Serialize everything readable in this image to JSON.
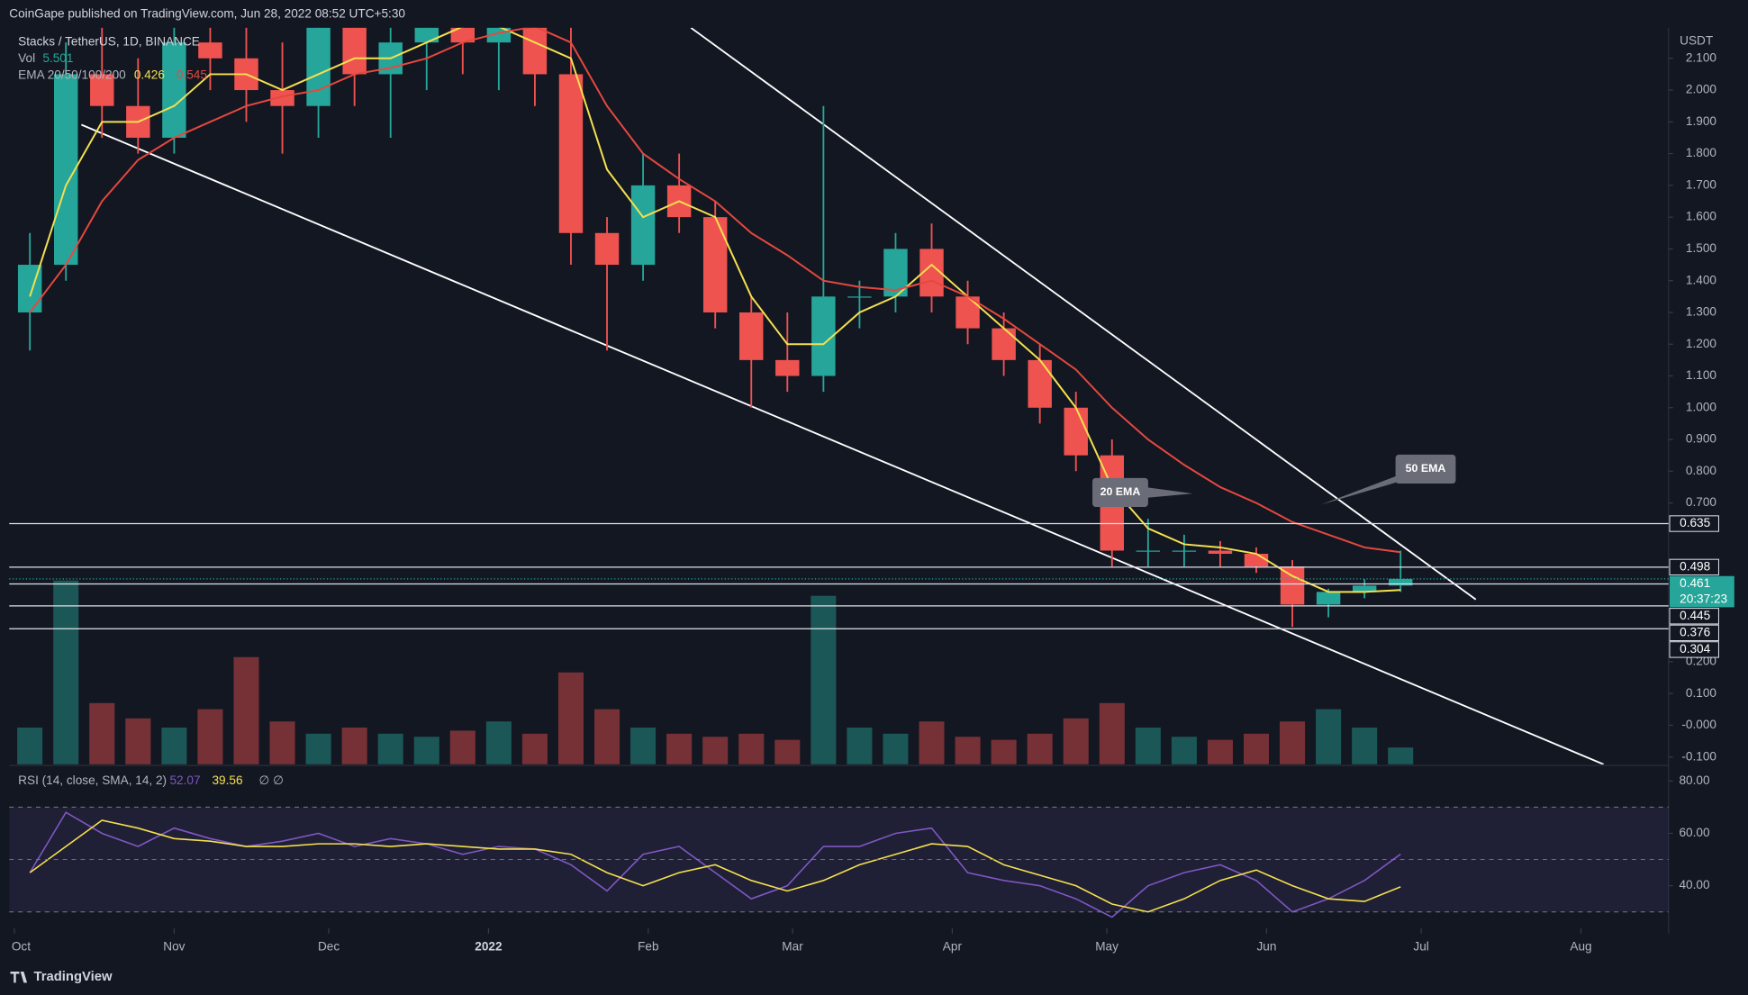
{
  "header": "CoinGape published on TradingView.com, Jun 28, 2022 08:52 UTC+5:30",
  "footer": "TradingView",
  "chart_data": [
    {
      "type": "candlestick",
      "title": "Stacks / TetherUS, 1D, BINANCE",
      "axis_unit": "USDT",
      "x": [
        3,
        10,
        17,
        24,
        31,
        38,
        45,
        52,
        59,
        66,
        73,
        80,
        87,
        94,
        101,
        108,
        115,
        122,
        129,
        136,
        143,
        150,
        157,
        164,
        171,
        178,
        185,
        192,
        199,
        206,
        213,
        220,
        227,
        234,
        241,
        248,
        255,
        262,
        269
      ],
      "open": [
        1.3,
        1.45,
        2.05,
        1.95,
        1.85,
        2.15,
        2.1,
        2.0,
        1.95,
        2.2,
        2.05,
        2.15,
        2.25,
        2.15,
        2.2,
        2.05,
        1.55,
        1.45,
        1.7,
        1.6,
        1.3,
        1.15,
        1.1,
        1.35,
        1.35,
        1.5,
        1.35,
        1.25,
        1.15,
        1.0,
        0.85,
        0.55,
        0.55,
        0.55,
        0.54,
        0.5,
        0.38,
        0.42,
        0.44
      ],
      "high": [
        1.55,
        2.15,
        2.25,
        2.1,
        2.2,
        2.3,
        2.25,
        2.15,
        2.3,
        2.3,
        2.25,
        2.3,
        2.3,
        2.3,
        2.3,
        2.2,
        1.6,
        1.8,
        1.8,
        1.65,
        1.35,
        1.3,
        1.95,
        1.4,
        1.55,
        1.58,
        1.4,
        1.3,
        1.2,
        1.05,
        0.9,
        0.65,
        0.6,
        0.58,
        0.56,
        0.52,
        0.43,
        0.46,
        0.55
      ],
      "low": [
        1.18,
        1.4,
        1.85,
        1.8,
        1.8,
        2.0,
        1.9,
        1.8,
        1.85,
        1.95,
        1.85,
        2.0,
        2.05,
        2.0,
        1.95,
        1.45,
        1.18,
        1.4,
        1.55,
        1.25,
        1.0,
        1.05,
        1.05,
        1.25,
        1.3,
        1.3,
        1.2,
        1.1,
        0.95,
        0.8,
        0.5,
        0.5,
        0.5,
        0.5,
        0.48,
        0.31,
        0.34,
        0.4,
        0.42
      ],
      "close": [
        1.45,
        2.05,
        1.95,
        1.85,
        2.15,
        2.1,
        2.0,
        1.95,
        2.2,
        2.05,
        2.15,
        2.25,
        2.15,
        2.2,
        2.05,
        1.55,
        1.45,
        1.7,
        1.6,
        1.3,
        1.15,
        1.1,
        1.35,
        1.35,
        1.5,
        1.35,
        1.25,
        1.15,
        1.0,
        0.85,
        0.55,
        0.55,
        0.55,
        0.54,
        0.5,
        0.38,
        0.42,
        0.44,
        0.461
      ],
      "up_color": "#26a69a",
      "down_color": "#ef5350",
      "volume": {
        "name": "Vol",
        "values": [
          12,
          60,
          20,
          15,
          12,
          18,
          35,
          14,
          10,
          12,
          10,
          9,
          11,
          14,
          10,
          30,
          18,
          12,
          10,
          9,
          10,
          8,
          55,
          12,
          10,
          14,
          9,
          8,
          10,
          15,
          20,
          12,
          9,
          8,
          10,
          14,
          18,
          12,
          5.501
        ],
        "ylim": [
          0,
          80
        ]
      },
      "ema": {
        "name": "EMA 20/50/100/200",
        "series": [
          {
            "color": "#f5e04f",
            "values": [
              1.35,
              1.7,
              1.9,
              1.9,
              1.95,
              2.05,
              2.05,
              2.0,
              2.05,
              2.1,
              2.1,
              2.15,
              2.2,
              2.2,
              2.15,
              2.1,
              1.75,
              1.6,
              1.65,
              1.6,
              1.35,
              1.2,
              1.2,
              1.3,
              1.35,
              1.45,
              1.35,
              1.25,
              1.15,
              1.0,
              0.75,
              0.62,
              0.57,
              0.56,
              0.54,
              0.47,
              0.42,
              0.42,
              0.426
            ]
          },
          {
            "color": "#e5483f",
            "values": [
              1.3,
              1.45,
              1.65,
              1.78,
              1.85,
              1.9,
              1.95,
              1.98,
              2.0,
              2.05,
              2.07,
              2.1,
              2.15,
              2.18,
              2.2,
              2.15,
              1.95,
              1.8,
              1.72,
              1.65,
              1.55,
              1.48,
              1.4,
              1.38,
              1.37,
              1.4,
              1.35,
              1.28,
              1.2,
              1.12,
              1.0,
              0.9,
              0.82,
              0.75,
              0.7,
              0.64,
              0.6,
              0.56,
              0.545
            ]
          }
        ]
      },
      "trendlines": [
        {
          "x": [
            131.3,
            283.6
          ],
          "y": [
            2.196,
            0.396
          ]
        },
        {
          "x": [
            13,
            308.4
          ],
          "y": [
            1.891,
            -0.123
          ]
        }
      ],
      "levels": [
        0.635,
        0.498,
        0.445,
        0.376,
        0.304
      ],
      "countdown": "20:37:23",
      "annotations": [
        {
          "text": "20 EMA"
        },
        {
          "text": "50 EMA"
        }
      ],
      "xlim": [
        -1,
        321
      ],
      "xticks": [
        {
          "value": 0,
          "label": "Oct"
        },
        {
          "value": 31,
          "label": "Nov"
        },
        {
          "value": 61,
          "label": "Dec"
        },
        {
          "value": 92,
          "label": "2022"
        },
        {
          "value": 123,
          "label": "Feb"
        },
        {
          "value": 151,
          "label": "Mar"
        },
        {
          "value": 182,
          "label": "Apr"
        },
        {
          "value": 212,
          "label": "May"
        },
        {
          "value": 243,
          "label": "Jun"
        },
        {
          "value": 273,
          "label": "Jul"
        },
        {
          "value": 304,
          "label": "Aug"
        }
      ],
      "ylim": [
        -0.123,
        2.196
      ],
      "yticks": [
        {
          "value": 2.1,
          "label": "2.100"
        },
        {
          "value": 2.0,
          "label": "2.000"
        },
        {
          "value": 1.9,
          "label": "1.900"
        },
        {
          "value": 1.8,
          "label": "1.800"
        },
        {
          "value": 1.7,
          "label": "1.700"
        },
        {
          "value": 1.6,
          "label": "1.600"
        },
        {
          "value": 1.5,
          "label": "1.500"
        },
        {
          "value": 1.4,
          "label": "1.400"
        },
        {
          "value": 1.3,
          "label": "1.300"
        },
        {
          "value": 1.2,
          "label": "1.200"
        },
        {
          "value": 1.1,
          "label": "1.100"
        },
        {
          "value": 1.0,
          "label": "1.000"
        },
        {
          "value": 0.9,
          "label": "0.900"
        },
        {
          "value": 0.8,
          "label": "0.800"
        },
        {
          "value": 0.7,
          "label": "0.700"
        },
        {
          "value": 0.2,
          "label": "0.200"
        },
        {
          "value": 0.1,
          "label": "0.100"
        },
        {
          "value": 0,
          "label": "-0.000"
        },
        {
          "value": -0.1,
          "label": "-0.100"
        }
      ]
    },
    {
      "type": "line",
      "title": "RSI (14, close, SMA, 14, 2)",
      "legend_suffix": "∅  ∅",
      "series": [
        {
          "color": "#7e57c2",
          "values": [
            45,
            68,
            60,
            55,
            62,
            58,
            55,
            57,
            60,
            55,
            58,
            56,
            52,
            55,
            54,
            48,
            38,
            52,
            55,
            45,
            35,
            40,
            55,
            55,
            60,
            62,
            45,
            42,
            40,
            35,
            28,
            40,
            45,
            48,
            42,
            30,
            35,
            42,
            52.07
          ]
        },
        {
          "color": "#f5e04f",
          "values": [
            45,
            55,
            65,
            62,
            58,
            57,
            55,
            55,
            56,
            56,
            55,
            56,
            55,
            54,
            54,
            52,
            45,
            40,
            45,
            48,
            42,
            38,
            42,
            48,
            52,
            56,
            55,
            48,
            44,
            40,
            33,
            30,
            35,
            42,
            46,
            40,
            35,
            34,
            39.56
          ]
        }
      ],
      "band": [
        30,
        70
      ],
      "midline": 50,
      "ylim": [
        23.8,
        85.5
      ],
      "yticks": [
        {
          "value": 80,
          "label": "80.00"
        },
        {
          "value": 60,
          "label": "60.00"
        },
        {
          "value": 40,
          "label": "40.00"
        }
      ]
    }
  ]
}
